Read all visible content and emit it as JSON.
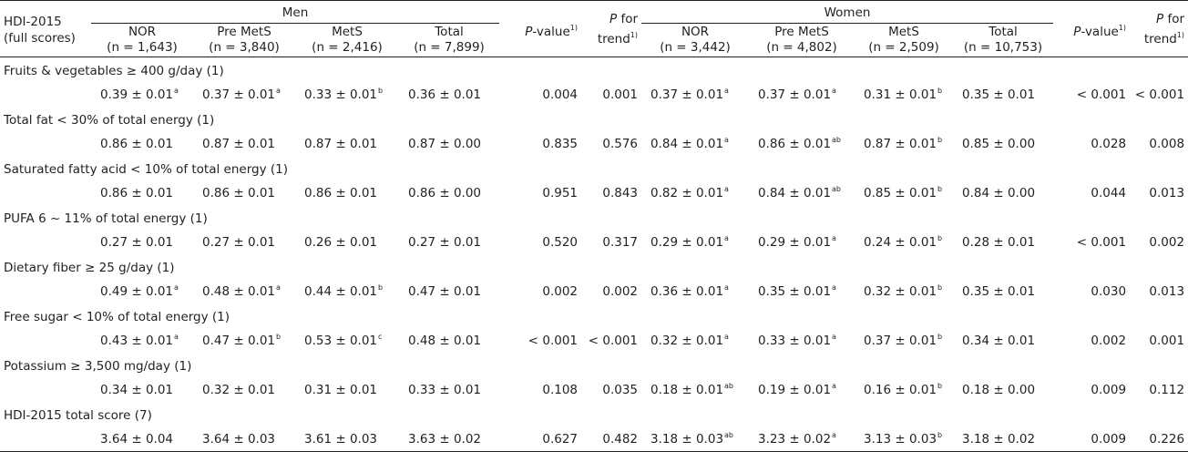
{
  "header": {
    "row_label_line1": "HDI-2015",
    "row_label_line2": "(full scores)",
    "men_label": "Men",
    "women_label": "Women",
    "men_cols": [
      {
        "name": "NOR",
        "n": "(n = 1,643)"
      },
      {
        "name": "Pre MetS",
        "n": "(n = 3,840)"
      },
      {
        "name": "MetS",
        "n": "(n = 2,416)"
      },
      {
        "name": "Total",
        "n": "(n = 7,899)"
      }
    ],
    "women_cols": [
      {
        "name": "NOR",
        "n": "(n = 3,442)"
      },
      {
        "name": "Pre MetS",
        "n": "(n = 4,802)"
      },
      {
        "name": "MetS",
        "n": "(n = 2,509)"
      },
      {
        "name": "Total",
        "n": "(n = 10,753)"
      }
    ],
    "pvalue_italic": "P",
    "pvalue_rest": "-value",
    "pvalue_sup": "1)",
    "ptrend_italic": "P",
    "ptrend_rest": " for",
    "ptrend_line2": "trend",
    "ptrend_sup": "1)"
  },
  "rows": [
    {
      "label": "Fruits & vegetables ≥ 400 g/day (1)",
      "men": [
        [
          "0.39 ± 0.01",
          "a"
        ],
        [
          "0.37 ± 0.01",
          "a"
        ],
        [
          "0.33 ± 0.01",
          "b"
        ],
        [
          "0.36 ± 0.01",
          ""
        ]
      ],
      "men_p": "0.004",
      "men_trend": "0.001",
      "women": [
        [
          "0.37 ± 0.01",
          "a"
        ],
        [
          "0.37 ± 0.01",
          "a"
        ],
        [
          "0.31 ± 0.01",
          "b"
        ],
        [
          "0.35 ± 0.01",
          ""
        ]
      ],
      "women_p": "< 0.001",
      "women_trend": "< 0.001"
    },
    {
      "label": "Total fat < 30% of total energy (1)",
      "men": [
        [
          "0.86 ± 0.01",
          ""
        ],
        [
          "0.87 ± 0.01",
          ""
        ],
        [
          "0.87 ± 0.01",
          ""
        ],
        [
          "0.87 ± 0.00",
          ""
        ]
      ],
      "men_p": "0.835",
      "men_trend": "0.576",
      "women": [
        [
          "0.84 ± 0.01",
          "a"
        ],
        [
          "0.86 ± 0.01",
          "ab"
        ],
        [
          "0.87 ± 0.01",
          "b"
        ],
        [
          "0.85 ± 0.00",
          ""
        ]
      ],
      "women_p": "0.028",
      "women_trend": "0.008"
    },
    {
      "label": "Saturated fatty acid < 10% of total energy (1)",
      "men": [
        [
          "0.86 ± 0.01",
          ""
        ],
        [
          "0.86 ± 0.01",
          ""
        ],
        [
          "0.86 ± 0.01",
          ""
        ],
        [
          "0.86 ± 0.00",
          ""
        ]
      ],
      "men_p": "0.951",
      "men_trend": "0.843",
      "women": [
        [
          "0.82 ± 0.01",
          "a"
        ],
        [
          "0.84 ± 0.01",
          "ab"
        ],
        [
          "0.85 ± 0.01",
          "b"
        ],
        [
          "0.84 ± 0.00",
          ""
        ]
      ],
      "women_p": "0.044",
      "women_trend": "0.013"
    },
    {
      "label": "PUFA 6 ~ 11% of total energy (1)",
      "men": [
        [
          "0.27 ± 0.01",
          ""
        ],
        [
          "0.27 ± 0.01",
          ""
        ],
        [
          "0.26 ± 0.01",
          ""
        ],
        [
          "0.27 ± 0.01",
          ""
        ]
      ],
      "men_p": "0.520",
      "men_trend": "0.317",
      "women": [
        [
          "0.29 ± 0.01",
          "a"
        ],
        [
          "0.29 ± 0.01",
          "a"
        ],
        [
          "0.24 ± 0.01",
          "b"
        ],
        [
          "0.28 ± 0.01",
          ""
        ]
      ],
      "women_p": "< 0.001",
      "women_trend": "0.002"
    },
    {
      "label": "Dietary fiber ≥ 25 g/day (1)",
      "men": [
        [
          "0.49 ± 0.01",
          "a"
        ],
        [
          "0.48 ± 0.01",
          "a"
        ],
        [
          "0.44 ± 0.01",
          "b"
        ],
        [
          "0.47 ± 0.01",
          ""
        ]
      ],
      "men_p": "0.002",
      "men_trend": "0.002",
      "women": [
        [
          "0.36 ± 0.01",
          "a"
        ],
        [
          "0.35 ± 0.01",
          "a"
        ],
        [
          "0.32 ± 0.01",
          "b"
        ],
        [
          "0.35 ± 0.01",
          ""
        ]
      ],
      "women_p": "0.030",
      "women_trend": "0.013"
    },
    {
      "label": "Free sugar < 10% of total energy (1)",
      "men": [
        [
          "0.43 ± 0.01",
          "a"
        ],
        [
          "0.47 ± 0.01",
          "b"
        ],
        [
          "0.53 ± 0.01",
          "c"
        ],
        [
          "0.48 ± 0.01",
          ""
        ]
      ],
      "men_p": "< 0.001",
      "men_trend": "< 0.001",
      "women": [
        [
          "0.32 ± 0.01",
          "a"
        ],
        [
          "0.33 ± 0.01",
          "a"
        ],
        [
          "0.37 ± 0.01",
          "b"
        ],
        [
          "0.34 ± 0.01",
          ""
        ]
      ],
      "women_p": "0.002",
      "women_trend": "0.001"
    },
    {
      "label": "Potassium ≥ 3,500 mg/day (1)",
      "men": [
        [
          "0.34 ± 0.01",
          ""
        ],
        [
          "0.32 ± 0.01",
          ""
        ],
        [
          "0.31 ± 0.01",
          ""
        ],
        [
          "0.33 ± 0.01",
          ""
        ]
      ],
      "men_p": "0.108",
      "men_trend": "0.035",
      "women": [
        [
          "0.18 ± 0.01",
          "ab"
        ],
        [
          "0.19 ± 0.01",
          "a"
        ],
        [
          "0.16 ± 0.01",
          "b"
        ],
        [
          "0.18 ± 0.00",
          ""
        ]
      ],
      "women_p": "0.009",
      "women_trend": "0.112"
    },
    {
      "label": "HDI-2015 total score (7)",
      "men": [
        [
          "3.64 ± 0.04",
          ""
        ],
        [
          "3.64 ± 0.03",
          ""
        ],
        [
          "3.61 ± 0.03",
          ""
        ],
        [
          "3.63 ± 0.02",
          ""
        ]
      ],
      "men_p": "0.627",
      "men_trend": "0.482",
      "women": [
        [
          "3.18 ± 0.03",
          "ab"
        ],
        [
          "3.23 ± 0.02",
          "a"
        ],
        [
          "3.13 ± 0.03",
          "b"
        ],
        [
          "3.18 ± 0.02",
          ""
        ]
      ],
      "women_p": "0.009",
      "women_trend": "0.226"
    }
  ]
}
